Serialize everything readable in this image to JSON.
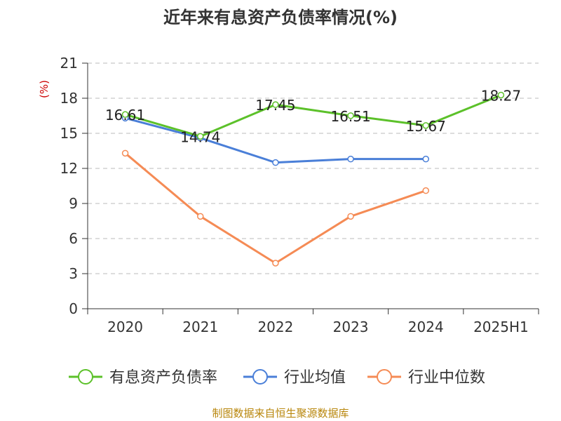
{
  "chart_data": {
    "type": "line",
    "title": "近年来有息资产负债率情况(%)",
    "ylabel": "(%)",
    "categories": [
      "2020",
      "2021",
      "2022",
      "2023",
      "2024",
      "2025H1"
    ],
    "y_ticks": [
      "0",
      "3",
      "6",
      "9",
      "12",
      "15",
      "18",
      "21"
    ],
    "ylim": [
      0,
      21
    ],
    "grid": true,
    "legend_position": "bottom",
    "series": [
      {
        "name": "有息资产负债率",
        "color": "#5cc12a",
        "values": [
          16.61,
          14.74,
          17.45,
          16.51,
          15.67,
          18.27
        ],
        "labels": [
          "16.61",
          "14.74",
          "17.45",
          "16.51",
          "15.67",
          "18.27"
        ]
      },
      {
        "name": "行业均值",
        "color": "#4a7fd8",
        "values": [
          16.3,
          14.6,
          12.5,
          12.8,
          12.8,
          null
        ],
        "labels": []
      },
      {
        "name": "行业中位数",
        "color": "#f58b55",
        "values": [
          13.3,
          7.9,
          3.9,
          7.9,
          10.1,
          null
        ],
        "labels": []
      }
    ]
  },
  "source_note": "制图数据来自恒生聚源数据库"
}
